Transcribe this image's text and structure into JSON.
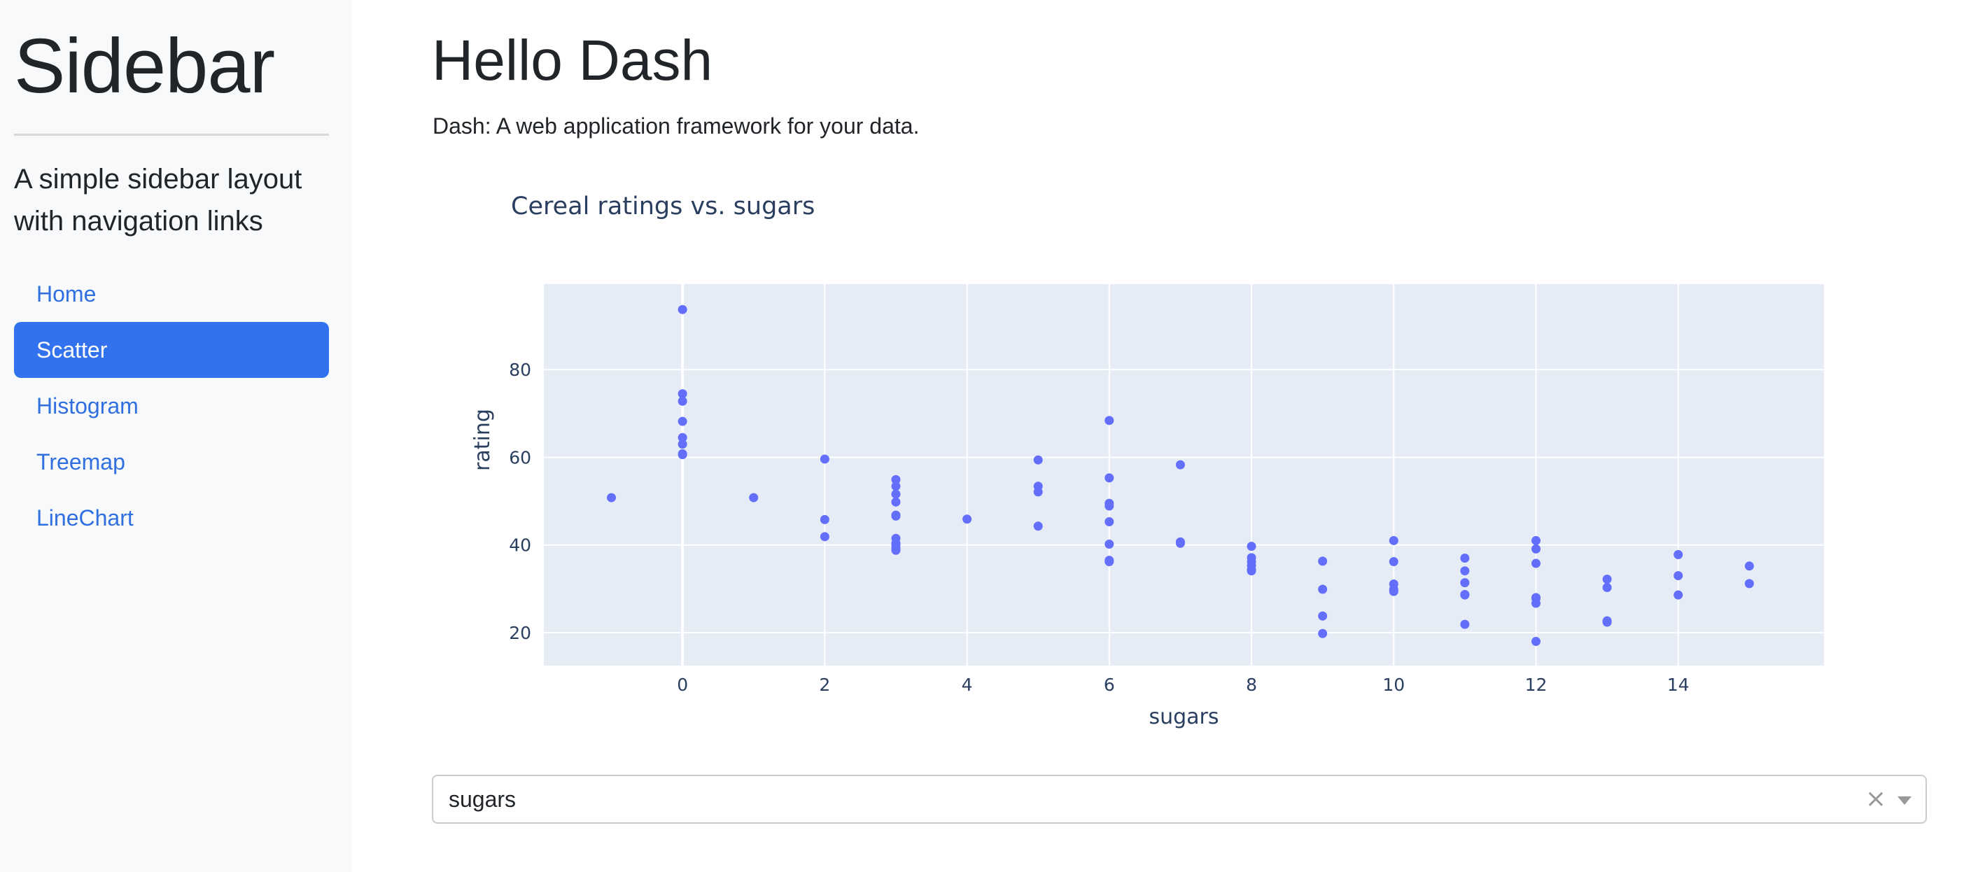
{
  "sidebar": {
    "title": "Sidebar",
    "lead": "A simple sidebar layout with navigation links",
    "items": [
      {
        "label": "Home",
        "active": false
      },
      {
        "label": "Scatter",
        "active": true
      },
      {
        "label": "Histogram",
        "active": false
      },
      {
        "label": "Treemap",
        "active": false
      },
      {
        "label": "LineChart",
        "active": false
      }
    ]
  },
  "main": {
    "title": "Hello Dash",
    "subtitle": "Dash: A web application framework for your data."
  },
  "dropdown": {
    "value": "sugars",
    "clear_icon": "×",
    "arrow_icon": "chevron-down-icon"
  },
  "colors": {
    "accent": "#3372ef",
    "link": "#2f6fdf",
    "plot_bg": "#e5ecf6",
    "marker": "#636efa"
  },
  "chart_data": {
    "type": "scatter",
    "title": "Cereal ratings vs. sugars",
    "xlabel": "sugars",
    "ylabel": "rating",
    "xlim": [
      -1.95,
      16.05
    ],
    "ylim": [
      12.5,
      99.5
    ],
    "xticks": [
      0,
      2,
      4,
      6,
      8,
      10,
      12,
      14
    ],
    "yticks": [
      20,
      40,
      60,
      80
    ],
    "grid": true,
    "series": [
      {
        "x": [
          -1,
          0,
          0,
          0,
          0,
          0,
          0,
          0,
          0,
          1,
          2,
          2,
          2,
          3,
          3,
          3,
          3,
          3,
          3,
          3,
          3,
          3,
          3,
          3,
          4,
          5,
          5,
          5,
          5,
          6,
          6,
          6,
          6,
          6,
          6,
          6,
          6,
          7,
          7,
          7,
          8,
          8,
          8,
          8,
          8,
          8,
          9,
          9,
          9,
          9,
          10,
          10,
          10,
          10,
          10,
          11,
          11,
          11,
          11,
          11,
          11,
          12,
          12,
          12,
          12,
          12,
          12,
          12,
          13,
          13,
          13,
          13,
          14,
          14,
          14,
          15,
          15
        ],
        "y": [
          50.8,
          93.7,
          74.5,
          72.8,
          68.2,
          64.5,
          63.0,
          60.8,
          60.6,
          50.8,
          59.6,
          45.8,
          41.9,
          54.9,
          53.4,
          51.6,
          49.8,
          46.8,
          46.6,
          41.5,
          40.4,
          40.0,
          39.3,
          38.8,
          45.9,
          59.4,
          53.4,
          52.1,
          44.3,
          68.4,
          55.3,
          49.5,
          48.9,
          45.3,
          40.2,
          36.5,
          36.2,
          58.3,
          40.7,
          40.4,
          39.7,
          37.1,
          36.2,
          35.3,
          34.4,
          34.1,
          36.3,
          29.9,
          23.8,
          19.8,
          41.0,
          36.2,
          31.1,
          29.9,
          29.4,
          37.0,
          34.1,
          31.4,
          28.7,
          28.6,
          21.9,
          41.0,
          39.1,
          35.8,
          28.0,
          27.8,
          26.7,
          18.0,
          32.2,
          30.3,
          22.7,
          22.4,
          37.8,
          33.0,
          28.6,
          35.2,
          31.2
        ]
      }
    ]
  }
}
